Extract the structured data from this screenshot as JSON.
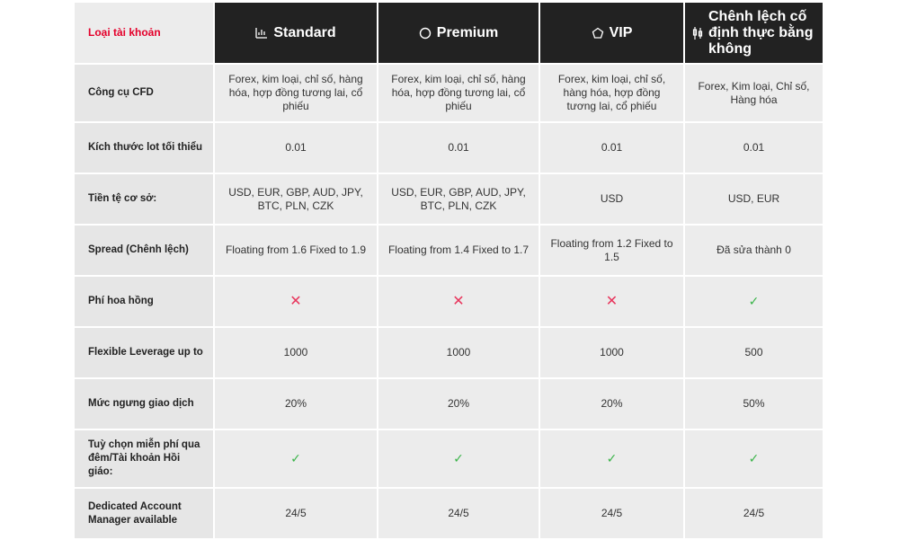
{
  "header": {
    "label": "Loại tài khoản",
    "columns": [
      {
        "name": "Standard",
        "icon": "bar-chart-icon"
      },
      {
        "name": "Premium",
        "icon": "circle-icon"
      },
      {
        "name": "VIP",
        "icon": "pentagon-icon"
      },
      {
        "name": "Chênh lệch cố định thực bằng không",
        "icon": "candlestick-icon"
      }
    ]
  },
  "rows": [
    {
      "label": "Công cụ CFD",
      "values": [
        "Forex, kim loại, chỉ số, hàng hóa, hợp đồng tương lai, cổ phiếu",
        "Forex, kim loại, chỉ số, hàng hóa, hợp đồng tương lai, cổ phiếu",
        "Forex, kim loại, chỉ số, hàng hóa, hợp đồng tương lai, cổ phiếu",
        "Forex, Kim loại, Chỉ số, Hàng hóa"
      ]
    },
    {
      "label": "Kích thước lot tối thiểu",
      "values": [
        "0.01",
        "0.01",
        "0.01",
        "0.01"
      ]
    },
    {
      "label": "Tiền tệ cơ sở:",
      "values": [
        "USD, EUR, GBP, AUD, JPY, BTC, PLN, CZK",
        "USD, EUR, GBP, AUD, JPY, BTC, PLN, CZK",
        "USD",
        "USD, EUR"
      ]
    },
    {
      "label": "Spread (Chênh lệch)",
      "values": [
        "Floating from 1.6 Fixed to 1.9",
        "Floating from 1.4 Fixed to 1.7",
        "Floating from 1.2 Fixed to 1.5",
        "Đã sửa thành 0"
      ]
    },
    {
      "label": "Phí hoa hồng",
      "values": [
        "✕",
        "✕",
        "✕",
        "✓"
      ]
    },
    {
      "label": "Flexible Leverage up to",
      "values": [
        "1000",
        "1000",
        "1000",
        "500"
      ]
    },
    {
      "label": "Mức ngưng giao dịch",
      "values": [
        "20%",
        "20%",
        "20%",
        "50%"
      ]
    },
    {
      "label": "Tuỳ chọn miễn phí qua đêm/Tài khoản Hồi giáo:",
      "values": [
        "✓",
        "✓",
        "✓",
        "✓"
      ]
    },
    {
      "label": "Dedicated Account Manager available",
      "values": [
        "24/5",
        "24/5",
        "24/5",
        "24/5"
      ]
    }
  ]
}
